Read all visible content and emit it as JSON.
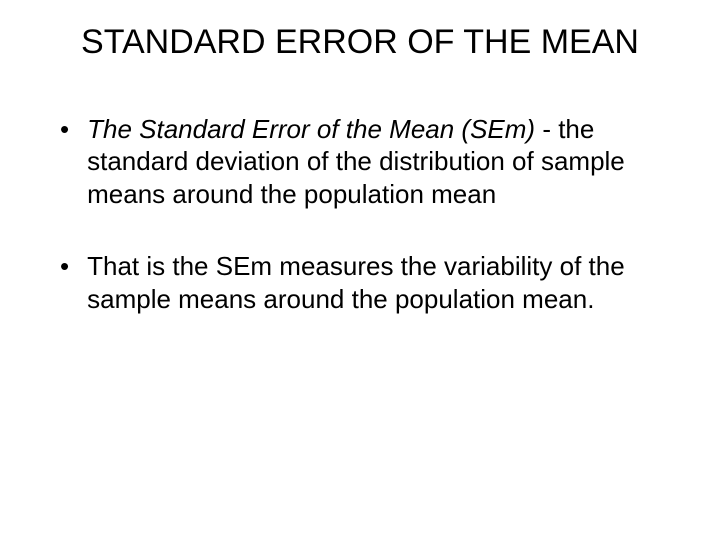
{
  "slide": {
    "title": "STANDARD ERROR OF THE MEAN",
    "bullets": [
      {
        "italic_part": "The Standard Error of the Mean (SEm) ",
        "normal_part": "- the standard deviation of the distribution of sample means around the population mean"
      },
      {
        "italic_part": "",
        "normal_part": "That is the SEm measures the variability of the sample means around the population mean."
      }
    ],
    "colors": {
      "background": "#ffffff",
      "text": "#000000"
    },
    "typography": {
      "title_fontsize": 34,
      "body_fontsize": 26,
      "font_family": "Arial"
    }
  }
}
